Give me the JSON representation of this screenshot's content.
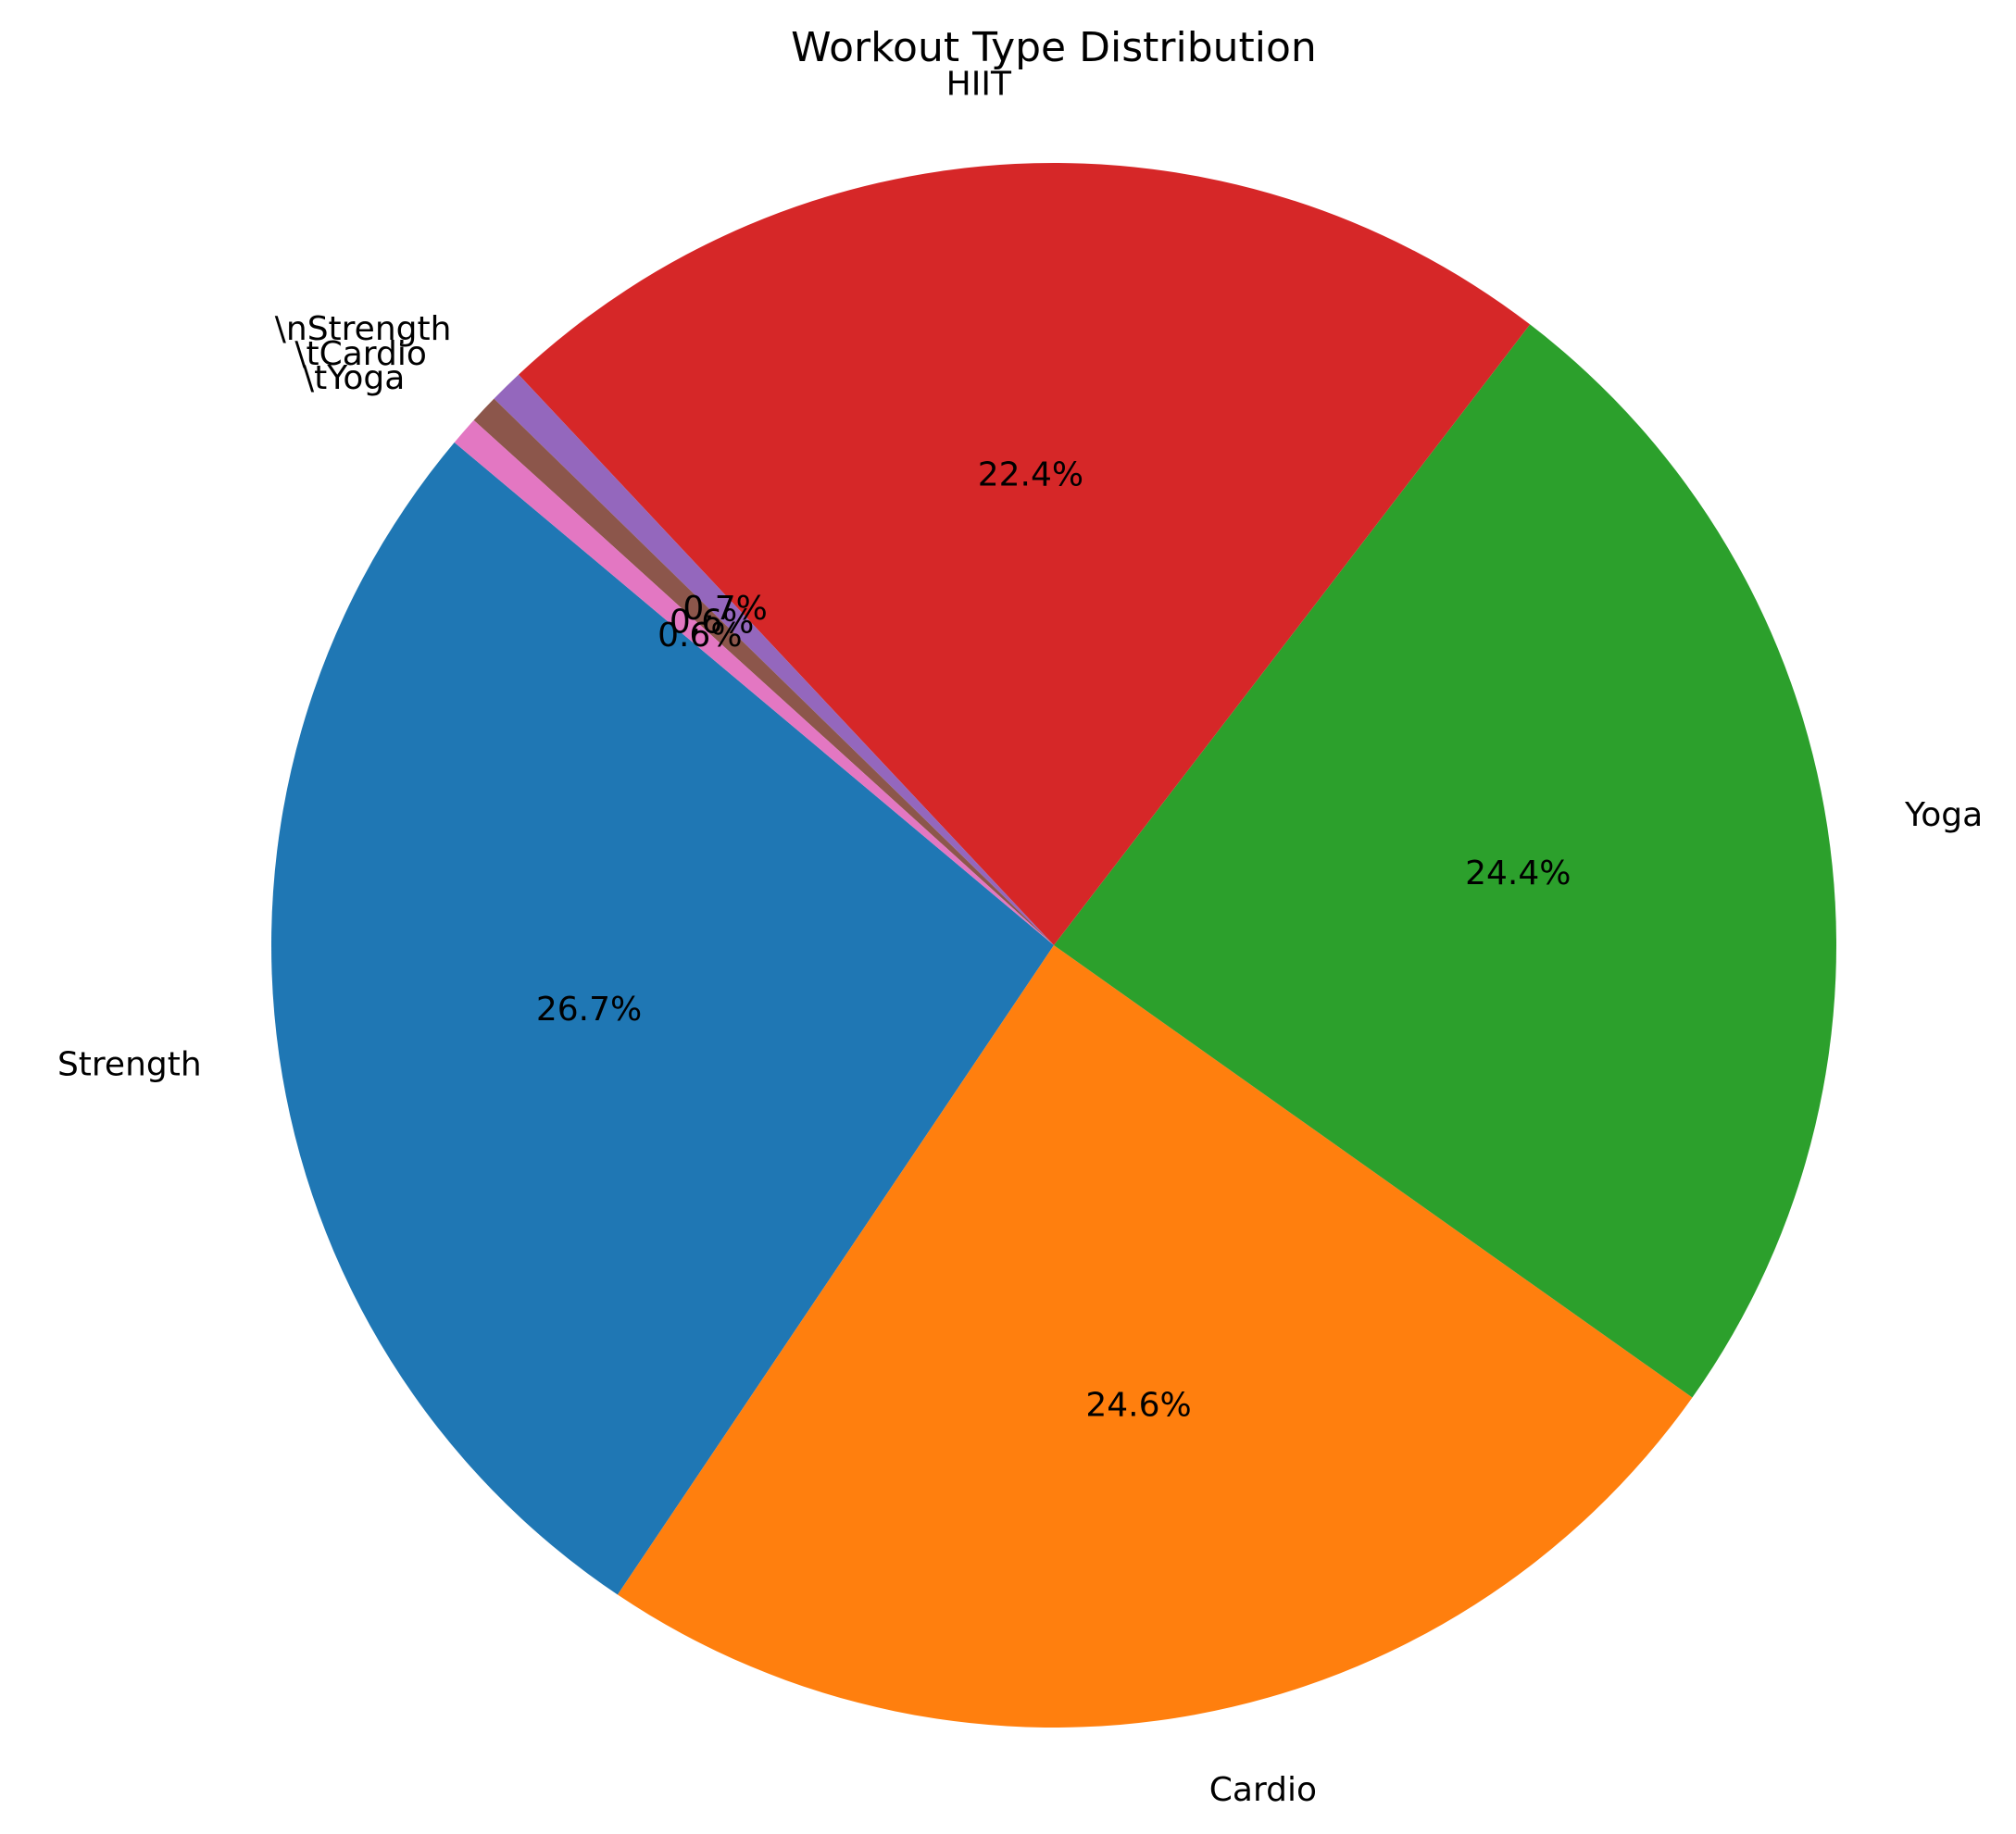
{
  "chart_data": {
    "type": "pie",
    "title": "Workout Type Distribution",
    "start_angle_deg": 140,
    "direction": "counterclockwise",
    "slices": [
      {
        "label": "Strength",
        "value": 26.7,
        "pct_label": "26.7%",
        "color": "#1f77b4"
      },
      {
        "label": "Cardio",
        "value": 24.6,
        "pct_label": "24.6%",
        "color": "#ff7f0e"
      },
      {
        "label": "Yoga",
        "value": 24.4,
        "pct_label": "24.4%",
        "color": "#2ca02c"
      },
      {
        "label": "HIIT",
        "value": 22.4,
        "pct_label": "22.4%",
        "color": "#d62728"
      },
      {
        "label": "\\nStrength",
        "value": 0.7,
        "pct_label": "0.7%",
        "color": "#9467bd"
      },
      {
        "label": "\\tCardio",
        "value": 0.6,
        "pct_label": "0.6%",
        "color": "#8c564b"
      },
      {
        "label": "\\tYoga",
        "value": 0.6,
        "pct_label": "0.6%",
        "color": "#e377c2"
      }
    ]
  }
}
